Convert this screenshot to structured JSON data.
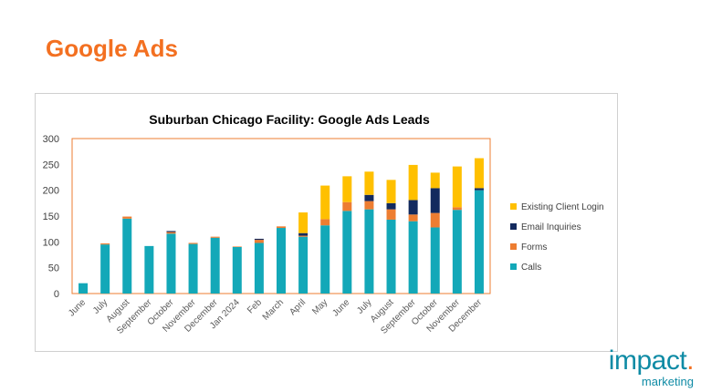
{
  "slide": {
    "title": "Google Ads"
  },
  "brand": {
    "name": "impact",
    "dot": ".",
    "tagline": "marketing"
  },
  "chart_data": {
    "type": "bar",
    "stacked": true,
    "title": "Suburban Chicago Facility: Google Ads Leads",
    "xlabel": "",
    "ylabel": "",
    "ylim": [
      0,
      300
    ],
    "yticks": [
      0,
      50,
      100,
      150,
      200,
      250,
      300
    ],
    "grid": false,
    "legend": "right",
    "categories": [
      "June",
      "July",
      "August",
      "September",
      "October",
      "November",
      "December",
      "Jan 2024",
      "Feb",
      "March",
      "April",
      "May",
      "June",
      "July",
      "August",
      "September",
      "October",
      "November",
      "December"
    ],
    "series": [
      {
        "name": "Calls",
        "color": "#13a8b8",
        "values": [
          20,
          95,
          145,
          92,
          116,
          96,
          108,
          90,
          98,
          127,
          110,
          132,
          160,
          163,
          143,
          140,
          128,
          162,
          200
        ]
      },
      {
        "name": "Forms",
        "color": "#ed7d31",
        "values": [
          0,
          2,
          4,
          0,
          3,
          2,
          2,
          1,
          6,
          3,
          2,
          12,
          17,
          16,
          20,
          13,
          28,
          5,
          0
        ]
      },
      {
        "name": "Email Inquiries",
        "color": "#132a5e",
        "values": [
          0,
          0,
          0,
          0,
          2,
          0,
          0,
          0,
          2,
          0,
          5,
          0,
          0,
          12,
          12,
          28,
          48,
          0,
          4
        ]
      },
      {
        "name": "Existing Client Login",
        "color": "#ffc000",
        "values": [
          0,
          0,
          0,
          0,
          0,
          0,
          0,
          0,
          0,
          0,
          40,
          65,
          50,
          45,
          45,
          68,
          30,
          79,
          58
        ]
      }
    ]
  }
}
